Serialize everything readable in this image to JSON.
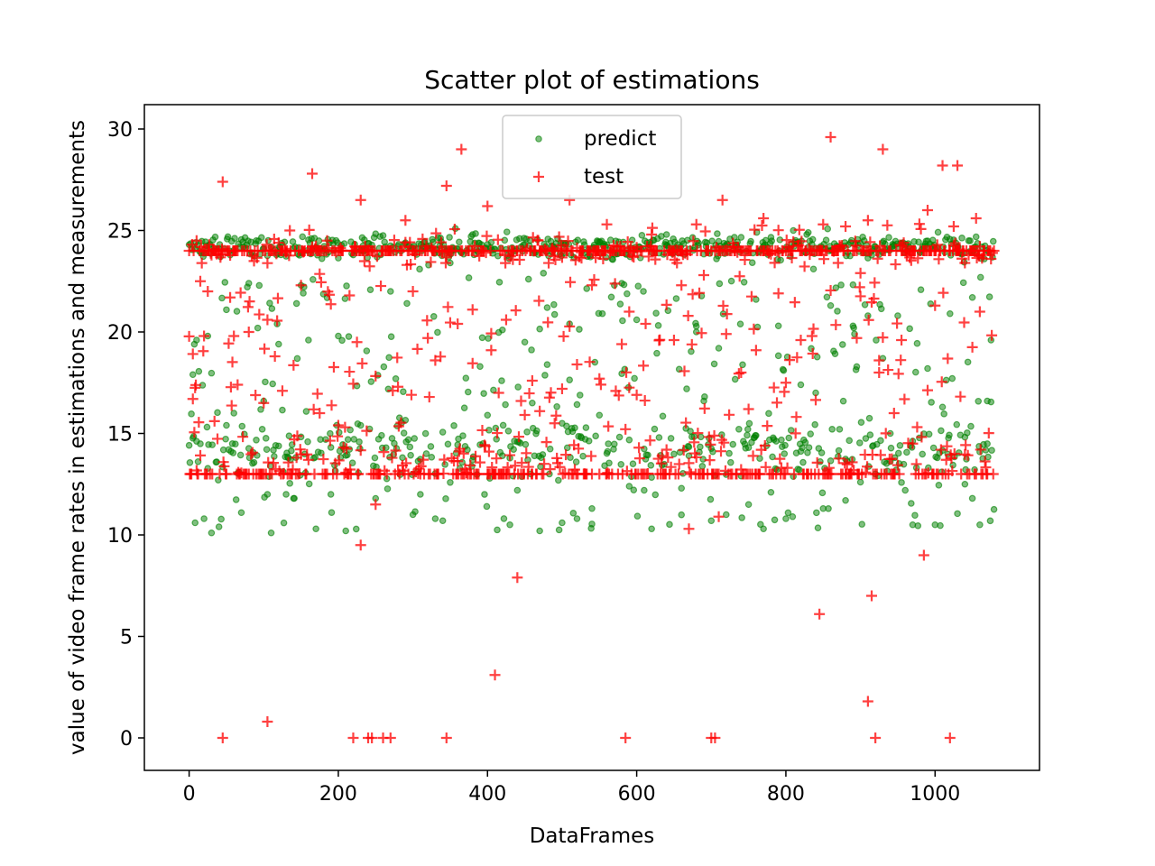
{
  "chart_data": {
    "type": "scatter",
    "title": "Scatter plot of estimations",
    "xlabel": "DataFrames",
    "ylabel": "value of video frame rates in estimations and measurements",
    "xlim": [
      -60,
      1140
    ],
    "ylim": [
      -1.6,
      31.2
    ],
    "x_ticks": [
      0,
      200,
      400,
      600,
      800,
      1000
    ],
    "y_ticks": [
      0,
      5,
      10,
      15,
      20,
      25,
      30
    ],
    "grid": false,
    "legend_position": "top-center",
    "x_count": 1080,
    "series": [
      {
        "name": "predict",
        "marker": "circle",
        "color": "#008000",
        "sample_points": [
          [
            0,
            24.3
          ],
          [
            5,
            17.9
          ],
          [
            8,
            10.6
          ],
          [
            10,
            19.6
          ],
          [
            20,
            10.8
          ],
          [
            25,
            19.8
          ],
          [
            30,
            10.1
          ],
          [
            40,
            10.4
          ],
          [
            50,
            15.4
          ],
          [
            60,
            16.0
          ],
          [
            70,
            11.1
          ],
          [
            80,
            22.4
          ],
          [
            90,
            24.5
          ],
          [
            100,
            16.6
          ],
          [
            105,
            12.0
          ],
          [
            110,
            10.1
          ],
          [
            120,
            19.4
          ],
          [
            130,
            12.0
          ],
          [
            140,
            11.8
          ],
          [
            150,
            22.3
          ],
          [
            160,
            19.6
          ],
          [
            170,
            10.3
          ],
          [
            190,
            12.0
          ],
          [
            200,
            19.8
          ],
          [
            210,
            10.2
          ],
          [
            230,
            15.4
          ],
          [
            250,
            11.8
          ],
          [
            270,
            22.0
          ],
          [
            290,
            24.4
          ],
          [
            300,
            11.0
          ],
          [
            310,
            12.0
          ],
          [
            330,
            10.8
          ],
          [
            340,
            10.7
          ],
          [
            350,
            23.4
          ],
          [
            360,
            24.1
          ],
          [
            380,
            24.8
          ],
          [
            390,
            18.3
          ],
          [
            400,
            15.9
          ],
          [
            420,
            20.1
          ],
          [
            430,
            10.5
          ],
          [
            440,
            12.2
          ],
          [
            450,
            19.5
          ],
          [
            460,
            16.5
          ],
          [
            470,
            10.2
          ],
          [
            480,
            21.2
          ],
          [
            490,
            24.1
          ],
          [
            500,
            10.6
          ],
          [
            510,
            20.4
          ],
          [
            520,
            10.8
          ],
          [
            530,
            23.9
          ],
          [
            540,
            11.3
          ],
          [
            550,
            15.9
          ],
          [
            560,
            24.3
          ],
          [
            570,
            22.3
          ],
          [
            580,
            22.4
          ],
          [
            590,
            12.4
          ],
          [
            600,
            20.6
          ],
          [
            610,
            12.2
          ],
          [
            620,
            10.3
          ],
          [
            630,
            14.8
          ],
          [
            640,
            24.8
          ],
          [
            650,
            24.1
          ],
          [
            660,
            12.3
          ],
          [
            670,
            13.9
          ],
          [
            680,
            20.0
          ],
          [
            690,
            16.6
          ],
          [
            700,
            10.7
          ],
          [
            710,
            19.2
          ],
          [
            720,
            11.0
          ],
          [
            740,
            12.9
          ],
          [
            750,
            11.5
          ],
          [
            760,
            21.6
          ],
          [
            770,
            10.3
          ],
          [
            780,
            12.1
          ],
          [
            790,
            20.3
          ],
          [
            800,
            10.8
          ],
          [
            810,
            25.0
          ],
          [
            820,
            17.4
          ],
          [
            830,
            24.9
          ],
          [
            840,
            17.0
          ],
          [
            850,
            11.3
          ],
          [
            860,
            21.3
          ],
          [
            870,
            24.2
          ],
          [
            880,
            11.7
          ],
          [
            890,
            20.3
          ],
          [
            900,
            12.6
          ],
          [
            910,
            20.8
          ],
          [
            920,
            24.2
          ],
          [
            930,
            18.7
          ],
          [
            940,
            15.0
          ],
          [
            950,
            20.8
          ],
          [
            960,
            12.2
          ],
          [
            970,
            10.5
          ],
          [
            980,
            23.9
          ],
          [
            990,
            18.2
          ],
          [
            1000,
            10.5
          ],
          [
            1010,
            16.3
          ],
          [
            1020,
            20.9
          ],
          [
            1030,
            24.2
          ],
          [
            1040,
            12.5
          ],
          [
            1050,
            21.7
          ],
          [
            1060,
            10.5
          ],
          [
            1070,
            16.6
          ],
          [
            1075,
            19.6
          ]
        ]
      },
      {
        "name": "test",
        "marker": "plus",
        "color": "#ff0000",
        "sample_points": [
          [
            0,
            24.0
          ],
          [
            5,
            16.7
          ],
          [
            10,
            24.5
          ],
          [
            15,
            22.5
          ],
          [
            20,
            19.8
          ],
          [
            25,
            22.0
          ],
          [
            45,
            27.4
          ],
          [
            45,
            0.0
          ],
          [
            55,
            21.7
          ],
          [
            60,
            19.8
          ],
          [
            65,
            17.4
          ],
          [
            80,
            20.0
          ],
          [
            100,
            16.5
          ],
          [
            105,
            0.8
          ],
          [
            105,
            20.6
          ],
          [
            115,
            18.8
          ],
          [
            125,
            17.1
          ],
          [
            135,
            25.0
          ],
          [
            150,
            22.3
          ],
          [
            165,
            27.8
          ],
          [
            175,
            16.0
          ],
          [
            185,
            24.5
          ],
          [
            200,
            15.4
          ],
          [
            215,
            21.8
          ],
          [
            220,
            0.0
          ],
          [
            225,
            19.5
          ],
          [
            230,
            9.5
          ],
          [
            230,
            26.5
          ],
          [
            240,
            0.0
          ],
          [
            245,
            0.0
          ],
          [
            250,
            11.5
          ],
          [
            260,
            0.0
          ],
          [
            270,
            0.0
          ],
          [
            280,
            17.3
          ],
          [
            290,
            25.5
          ],
          [
            300,
            22.0
          ],
          [
            320,
            19.7
          ],
          [
            330,
            18.6
          ],
          [
            345,
            0.0
          ],
          [
            345,
            27.2
          ],
          [
            360,
            20.4
          ],
          [
            365,
            29.0
          ],
          [
            380,
            21.1
          ],
          [
            400,
            26.2
          ],
          [
            405,
            19.1
          ],
          [
            410,
            3.1
          ],
          [
            415,
            17.0
          ],
          [
            425,
            20.6
          ],
          [
            440,
            7.9
          ],
          [
            445,
            16.6
          ],
          [
            460,
            17.6
          ],
          [
            470,
            16.1
          ],
          [
            490,
            15.5
          ],
          [
            500,
            17.2
          ],
          [
            510,
            26.5
          ],
          [
            520,
            18.4
          ],
          [
            540,
            22.3
          ],
          [
            550,
            17.7
          ],
          [
            560,
            25.3
          ],
          [
            580,
            19.4
          ],
          [
            585,
            0.0
          ],
          [
            590,
            21.0
          ],
          [
            600,
            16.9
          ],
          [
            620,
            24.8
          ],
          [
            640,
            14.2
          ],
          [
            650,
            19.6
          ],
          [
            660,
            22.3
          ],
          [
            670,
            10.3
          ],
          [
            680,
            25.3
          ],
          [
            690,
            22.8
          ],
          [
            700,
            0.0
          ],
          [
            705,
            0.0
          ],
          [
            710,
            10.9
          ],
          [
            715,
            26.5
          ],
          [
            720,
            19.9
          ],
          [
            740,
            18.0
          ],
          [
            750,
            16.2
          ],
          [
            760,
            19.1
          ],
          [
            770,
            25.6
          ],
          [
            790,
            21.9
          ],
          [
            800,
            17.5
          ],
          [
            820,
            19.6
          ],
          [
            835,
            19.8
          ],
          [
            845,
            6.1
          ],
          [
            850,
            25.3
          ],
          [
            860,
            29.6
          ],
          [
            870,
            23.4
          ],
          [
            880,
            25.2
          ],
          [
            895,
            19.7
          ],
          [
            900,
            22.9
          ],
          [
            910,
            1.8
          ],
          [
            910,
            25.5
          ],
          [
            915,
            7.0
          ],
          [
            920,
            0.0
          ],
          [
            925,
            18.0
          ],
          [
            930,
            29.0
          ],
          [
            945,
            16.0
          ],
          [
            955,
            19.6
          ],
          [
            970,
            14.5
          ],
          [
            985,
            9.0
          ],
          [
            990,
            26.0
          ],
          [
            1000,
            21.3
          ],
          [
            1010,
            28.2
          ],
          [
            1020,
            0.0
          ],
          [
            1025,
            25.2
          ],
          [
            1030,
            28.2
          ],
          [
            1040,
            23.4
          ],
          [
            1055,
            25.6
          ],
          [
            1060,
            21.0
          ],
          [
            1065,
            23.8
          ]
        ]
      }
    ]
  }
}
